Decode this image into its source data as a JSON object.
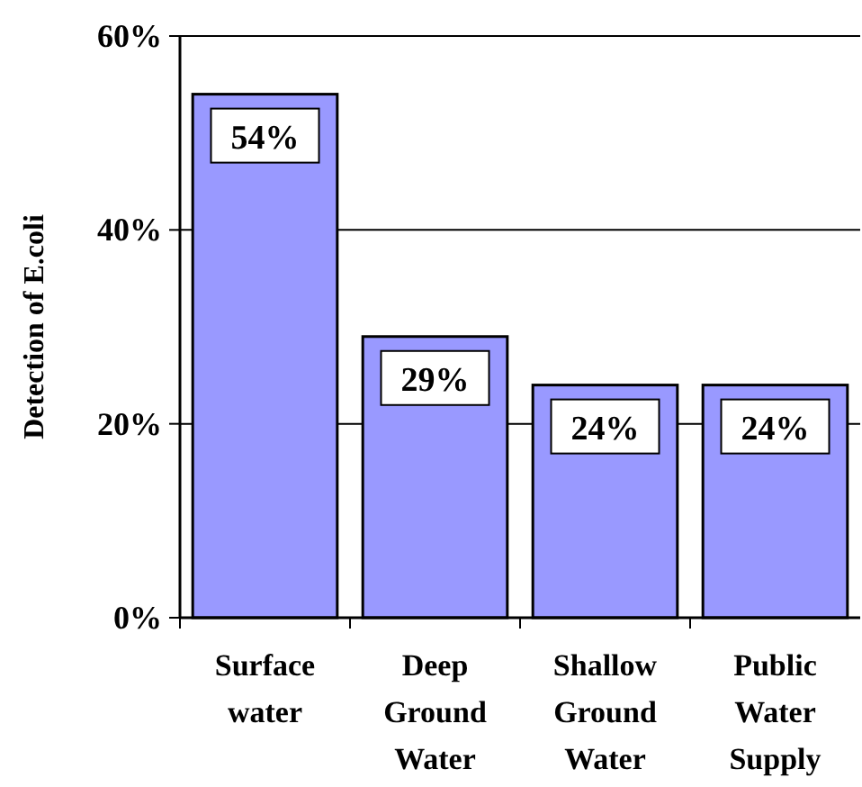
{
  "chart_data": {
    "type": "bar",
    "ylabel": "Detection of E.coli",
    "categories": [
      "Surface water",
      "Deep Ground Water",
      "Shallow Ground Water",
      "Public Water Supply"
    ],
    "values": [
      54,
      29,
      24,
      24
    ],
    "color": "#9999ff",
    "value_labels": [
      "54%",
      "29%",
      "24%",
      "24%"
    ],
    "ylim": [
      0,
      60
    ],
    "yticks": [
      {
        "value": 0,
        "label": "0%"
      },
      {
        "value": 20,
        "label": "20%"
      },
      {
        "value": 40,
        "label": "40%"
      },
      {
        "value": 60,
        "label": "60%"
      }
    ],
    "grid": "y"
  }
}
